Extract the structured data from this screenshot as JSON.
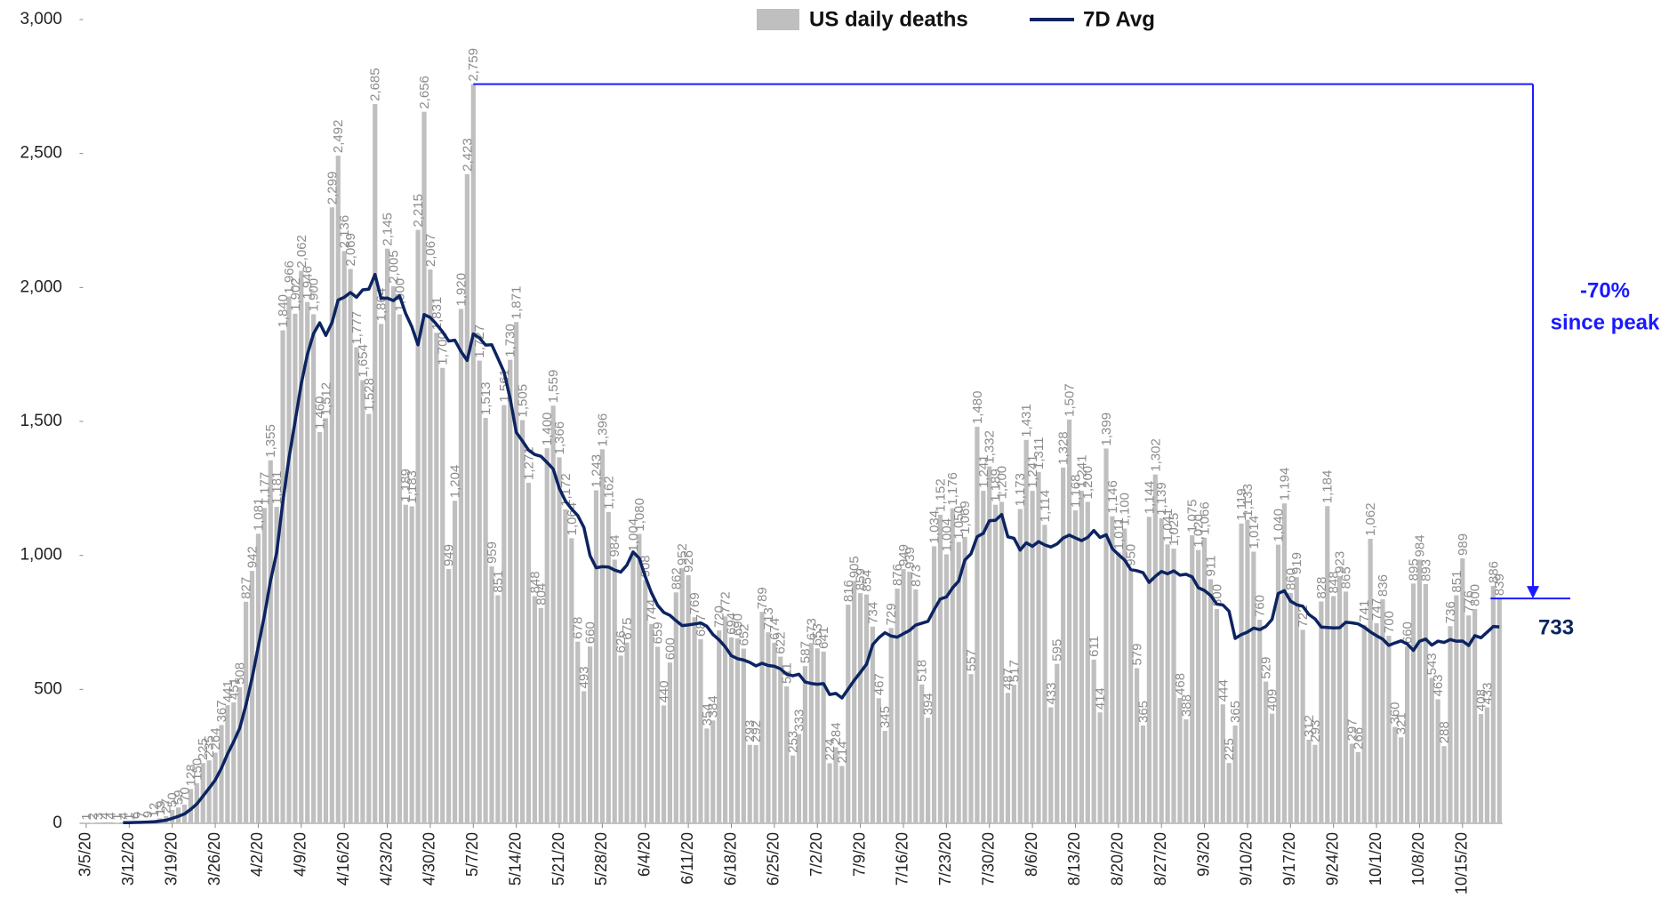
{
  "chart_data": {
    "type": "bar_line",
    "categories": [
      "3/5/20",
      null,
      null,
      null,
      null,
      null,
      null,
      "3/12/20",
      null,
      null,
      null,
      null,
      null,
      null,
      "3/19/20",
      null,
      null,
      null,
      null,
      null,
      null,
      "3/26/20",
      null,
      null,
      null,
      null,
      null,
      null,
      "4/2/20",
      null,
      null,
      null,
      null,
      null,
      null,
      "4/9/20",
      null,
      null,
      null,
      null,
      null,
      null,
      "4/16/20",
      null,
      null,
      null,
      null,
      null,
      null,
      "4/23/20",
      null,
      null,
      null,
      null,
      null,
      null,
      "4/30/20",
      null,
      null,
      null,
      null,
      null,
      null,
      "5/7/20",
      null,
      null,
      null,
      null,
      null,
      null,
      "5/14/20",
      null,
      null,
      null,
      null,
      null,
      null,
      "5/21/20",
      null,
      null,
      null,
      null,
      null,
      null,
      "5/28/20",
      null,
      null,
      null,
      null,
      null,
      null,
      "6/4/20",
      null,
      null,
      null,
      null,
      null,
      null,
      "6/11/20",
      null,
      null,
      null,
      null,
      null,
      null,
      "6/18/20",
      null,
      null,
      null,
      null,
      null,
      null,
      "6/25/20",
      null,
      null,
      null,
      null,
      null,
      null,
      "7/2/20",
      null,
      null,
      null,
      null,
      null,
      null,
      "7/9/20",
      null,
      null,
      null,
      null,
      null,
      null,
      "7/16/20",
      null,
      null,
      null,
      null,
      null,
      null,
      "7/23/20",
      null,
      null,
      null,
      null,
      null,
      null,
      "7/30/20",
      null,
      null,
      null,
      null,
      null,
      null,
      "8/6/20",
      null,
      null,
      null,
      null,
      null,
      null,
      "8/13/20",
      null,
      null,
      null,
      null,
      null,
      null,
      "8/20/20",
      null,
      null,
      null,
      null,
      null,
      null,
      "8/27/20",
      null,
      null,
      null,
      null,
      null,
      null,
      "9/3/20",
      null,
      null,
      null,
      null,
      null,
      null,
      "9/10/20",
      null,
      null,
      null,
      null,
      null,
      null,
      "9/17/20",
      null,
      null,
      null,
      null,
      null,
      null,
      "9/24/20",
      null,
      null,
      null,
      null,
      null,
      null,
      "10/1/20",
      null,
      null,
      null,
      null,
      null,
      null,
      "10/8/20",
      null,
      null,
      null,
      null,
      null,
      null,
      "10/15/20",
      null,
      null,
      null,
      null,
      null,
      null
    ],
    "series": [
      {
        "name": "US daily deaths",
        "color": "#bfbfbf",
        "values": [
          1,
          2,
          3,
          4,
          4,
          1,
          4,
          1,
          6,
          7,
          9,
          12,
          19,
          27,
          50,
          59,
          70,
          128,
          150,
          225,
          235,
          264,
          367,
          441,
          451,
          508,
          827,
          942,
          1081,
          1177,
          1355,
          1181,
          1840,
          1966,
          1902,
          2062,
          1946,
          1900,
          1460,
          1512,
          2299,
          2492,
          2136,
          2069,
          1777,
          1654,
          1528,
          2685,
          1864,
          2145,
          2005,
          1900,
          1189,
          1183,
          2215,
          2656,
          2067,
          1831,
          1700,
          949,
          1204,
          1920,
          2423,
          2759,
          1727,
          1513,
          959,
          851,
          1561,
          1730,
          1871,
          1505,
          1271,
          848,
          804,
          1400,
          1559,
          1366,
          1172,
          1064,
          678,
          493,
          660,
          1243,
          1396,
          1162,
          984,
          626,
          675,
          1004,
          1080,
          908,
          744,
          659,
          440,
          600,
          862,
          952,
          926,
          769,
          687,
          354,
          384,
          720,
          772,
          694,
          690,
          652,
          293,
          292,
          789,
          713,
          674,
          622,
          511,
          253,
          333,
          587,
          673,
          653,
          641,
          224,
          284,
          214,
          816,
          905,
          859,
          854,
          734,
          467,
          345,
          729,
          876,
          949,
          939,
          873,
          518,
          394,
          1034,
          1152,
          1004,
          1176,
          1050,
          1069,
          557,
          1480,
          1241,
          1332,
          1189,
          1200,
          487,
          517,
          1173,
          1431,
          1241,
          1311,
          1114,
          433,
          595,
          1328,
          1507,
          1168,
          1241,
          1200,
          611,
          414,
          1399,
          1146,
          1011,
          1100,
          950,
          579,
          365,
          1144,
          1302,
          1139,
          1041,
          1025,
          468,
          388,
          1075,
          1020,
          1066,
          911,
          800,
          444,
          225,
          365,
          1119,
          1133,
          1014,
          760,
          529,
          409,
          1040,
          1194,
          860,
          919,
          722,
          312,
          293,
          828,
          1184,
          848,
          923,
          865,
          297,
          266,
          741,
          1062,
          747,
          836,
          700,
          360,
          321,
          660,
          895,
          984,
          893,
          543,
          463,
          288,
          736,
          851,
          989,
          776,
          800,
          408,
          433,
          886,
          839
        ],
        "value_labels": [
          "1",
          "2",
          "3",
          "4",
          "4",
          "1",
          "4",
          "1",
          "6",
          "7",
          "9",
          "12",
          "19",
          "27",
          "50",
          "59",
          "70",
          "128",
          "150",
          "225",
          "235",
          "264",
          "367",
          "441",
          "451",
          "508",
          "827",
          "942",
          "1,081",
          "1,177",
          "1,355",
          "1,181",
          "1,840",
          "1,966",
          "1,902",
          "2,062",
          "1,946",
          "1,900",
          "1,460",
          "1,512",
          "2,299",
          "2,492",
          "2,136",
          "2,069",
          "1,777",
          "1,654",
          "1,528",
          "2,685",
          "1,864",
          "2,145",
          "2,005",
          "1,900",
          "1,189",
          "1,183",
          "2,215",
          "2,656",
          "2,067",
          "1,831",
          "1,700",
          "949",
          "1,204",
          "1,920",
          "2,423",
          "2,759",
          "1,727",
          "1,513",
          "959",
          "851",
          "1,561",
          "1,730",
          "1,871",
          "1,505",
          "1,271",
          "848",
          "804",
          "1,400",
          "1,559",
          "1,366",
          "1,172",
          "1,064",
          "678",
          "493",
          "660",
          "1,243",
          "1,396",
          "1,162",
          "984",
          "626",
          "675",
          "1,004",
          "1,080",
          "908",
          "744",
          "659",
          "440",
          "600",
          "862",
          "952",
          "926",
          "769",
          "687",
          "354",
          "384",
          "720",
          "772",
          "694",
          "690",
          "652",
          "293",
          "292",
          "789",
          "713",
          "674",
          "622",
          "511",
          "253",
          "333",
          "587",
          "673",
          "653",
          "641",
          "224",
          "284",
          "214",
          "816",
          "905",
          "859",
          "854",
          "734",
          "467",
          "345",
          "729",
          "876",
          "949",
          "939",
          "873",
          "518",
          "394",
          "1,034",
          "1,152",
          "1,004",
          "1,176",
          "1,050",
          "1,069",
          "557",
          "1,480",
          "1,241",
          "1,332",
          "1,189",
          "1,200",
          "487",
          "517",
          "1,173",
          "1,431",
          "1,241",
          "1,311",
          "1,114",
          "433",
          "595",
          "1,328",
          "1,507",
          "1,168",
          "1,241",
          "1,200",
          "611",
          "414",
          "1,399",
          "1,146",
          "1,011",
          "1,100",
          "950",
          "579",
          "365",
          "1,144",
          "1,302",
          "1,139",
          "1,041",
          "1,025",
          "468",
          "388",
          "1,075",
          "1,020",
          "1,066",
          "911",
          "800",
          "444",
          "225",
          "365",
          "1,119",
          "1,133",
          "1,014",
          "760",
          "529",
          "409",
          "1,040",
          "1,194",
          "860",
          "919",
          "722",
          "312",
          "293",
          "828",
          "1,184",
          "848",
          "923",
          "865",
          "297",
          "266",
          "741",
          "1,062",
          "747",
          "836",
          "700",
          "360",
          "321",
          "660",
          "895",
          "984",
          "893",
          "543",
          "463",
          "288",
          "736",
          "851",
          "989",
          "776",
          "800",
          "408",
          "433",
          "886",
          "839"
        ]
      },
      {
        "name": "7D Avg",
        "color": "#0c2461",
        "values": [
          null,
          null,
          null,
          null,
          null,
          null,
          2.7,
          2.7,
          3.3,
          3.9,
          4.6,
          5.7,
          8.3,
          11.6,
          18.6,
          26.1,
          35.1,
          52.1,
          71.9,
          101.3,
          131,
          161.6,
          205.6,
          258.6,
          304.7,
          355.9,
          441.9,
          542.9,
          659.6,
          775.3,
          905.9,
          1010.1,
          1200.4,
          1363.1,
          1500.3,
          1640.4,
          1750.3,
          1828.1,
          1868,
          1821.1,
          1868.7,
          1953,
          1963.6,
          1981.1,
          1963.6,
          1991.3,
          1993.6,
          2048.7,
          1959,
          1960.3,
          1951.1,
          1968.7,
          1902.3,
          1853,
          1785.9,
          1899,
          1887.9,
          1863,
          1834.4,
          1800.1,
          1803.1,
          1761,
          1727.7,
          1826.6,
          1811.7,
          1785,
          1786.4,
          1736,
          1684.7,
          1585.7,
          1458.9,
          1427.1,
          1392.6,
          1376.7,
          1370,
          1347,
          1322.6,
          1250.4,
          1202.9,
          1173.3,
          1149,
          1104.6,
          998.9,
          953.7,
          958,
          956.6,
          945.1,
          937.7,
          963.7,
          1012.9,
          989.6,
          919.9,
          860.1,
          813.7,
          787.1,
          776.4,
          756.1,
          737.9,
          740.4,
          744,
          748,
          735.7,
          704.9,
          684.6,
          658.9,
          625.7,
          614.4,
          609.4,
          600.7,
          587.6,
          597.4,
          589,
          586.1,
          576.4,
          556.3,
          550.6,
          556.4,
          527.6,
          521.9,
          518.9,
          521.6,
          480.6,
          485,
          468,
          500.7,
          533.9,
          563.3,
          593.7,
          666.6,
          692.7,
          711.4,
          699,
          694.9,
          707.7,
          719.9,
          739.7,
          747,
          754,
          797.6,
          837,
          844.9,
          878.7,
          904,
          982.7,
          1006,
          1069.7,
          1082.4,
          1129.3,
          1131.1,
          1152.6,
          1069.4,
          1063.7,
          1019.9,
          1047,
          1034,
          1051.4,
          1039.1,
          1031.4,
          1042.6,
          1064.7,
          1075.6,
          1065.1,
          1055.1,
          1067.4,
          1092.9,
          1067,
          1077.1,
          1025.6,
          1003.1,
          983,
          947.3,
          942.7,
          935.7,
          899.3,
          921.6,
          939.9,
          931.4,
          942.1,
          926.3,
          929.6,
          919.7,
          879.4,
          869,
          850.4,
          818.3,
          814.9,
          791.6,
          690.1,
          704.3,
          713.9,
          728.6,
          722.9,
          735,
          761.3,
          857.7,
          868.4,
          829.4,
          815.9,
          810.4,
          779.4,
          762.9,
          732.6,
          731.1,
          729.4,
          730,
          750.4,
          748.3,
          744.4,
          732,
          714.6,
          700.1,
          687.7,
          664.1,
          673.1,
          681,
          669.4,
          645.6,
          679.4,
          687.6,
          665.1,
          679.9,
          675.1,
          686,
          679.7,
          680.4,
          663.7,
          700.4,
          692.6,
          713.3,
          734.7,
          733
        ]
      }
    ],
    "ylim": [
      0,
      3000
    ],
    "yticks": [
      0,
      500,
      {
        "value": 1000,
        "label": "1,000"
      },
      {
        "value": 1500,
        "label": "1,500"
      },
      {
        "value": 2000,
        "label": "2,000"
      },
      {
        "value": 2500,
        "label": "2,500"
      },
      {
        "value": 3000,
        "label": "3,000"
      }
    ],
    "grid": false,
    "legend": "top",
    "annotations": [
      "-70%",
      "since peak"
    ],
    "annotation_color": "#1a1aff"
  }
}
